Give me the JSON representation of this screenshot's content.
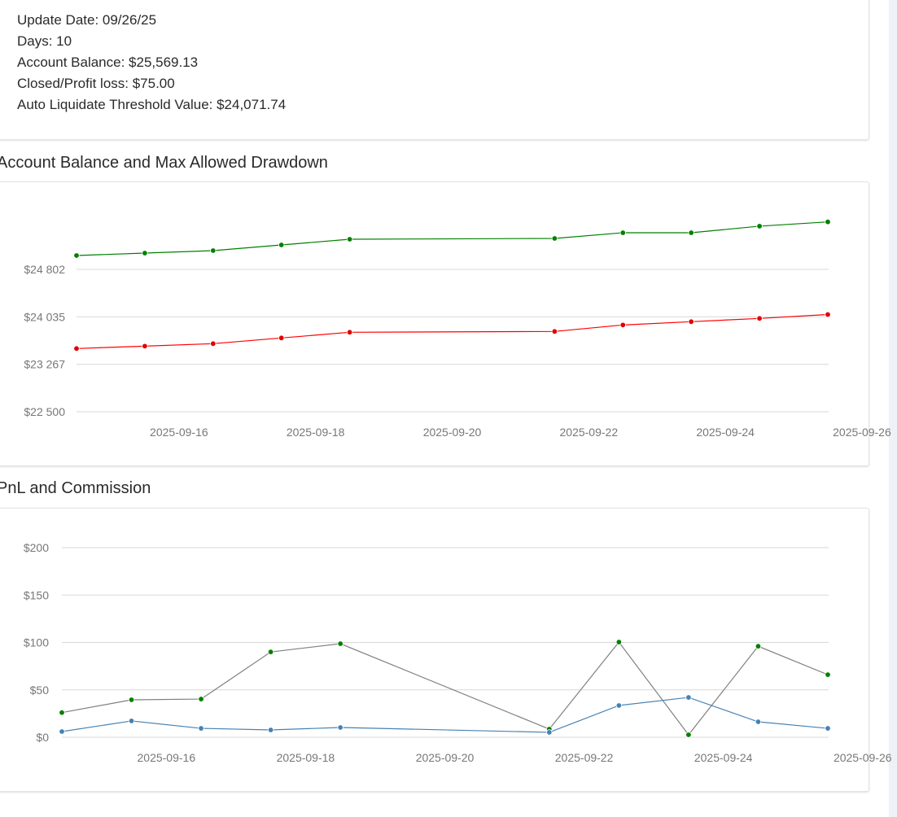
{
  "summary": {
    "update_date": "Update Date: 09/26/25",
    "days": "Days: 10",
    "account_balance": "Account Balance: $25,569.13",
    "closed_pl": "Closed/Profit loss: $75.00",
    "threshold": "Auto Liquidate Threshold Value: $24,071.74"
  },
  "chart_data": [
    {
      "type": "line",
      "title": "Account Balance and Max Allowed Drawdown",
      "x": [
        "2025-09-15",
        "2025-09-16",
        "2025-09-17",
        "2025-09-18",
        "2025-09-19",
        "2025-09-22",
        "2025-09-23",
        "2025-09-24",
        "2025-09-25",
        "2025-09-26"
      ],
      "series": [
        {
          "values": [
            25026,
            25065,
            25105,
            25197,
            25289,
            25302,
            25394,
            25394,
            25500,
            25569.13
          ],
          "color": "#008000",
          "marker": "#008000"
        },
        {
          "values": [
            23522,
            23561,
            23601,
            23693,
            23785,
            23798,
            23903,
            23956,
            24009,
            24071.74
          ],
          "color": "#ff0000",
          "marker": "#e00000"
        }
      ],
      "ylim": [
        22500,
        25569.13
      ],
      "yticks": [
        22500,
        23267,
        24035,
        24802
      ],
      "ytick_labels": [
        "$22 500",
        "$23 267",
        "$24 035",
        "$24 802"
      ],
      "xtick_labels": [
        "2025-09-16",
        "2025-09-18",
        "2025-09-20",
        "2025-09-22",
        "2025-09-24",
        "2025-09-26"
      ],
      "grid": true
    },
    {
      "type": "line",
      "title": "PnL and Commission",
      "x": [
        "2025-09-15",
        "2025-09-16",
        "2025-09-17",
        "2025-09-18",
        "2025-09-19",
        "2025-09-22",
        "2025-09-23",
        "2025-09-24",
        "2025-09-25",
        "2025-09-26"
      ],
      "series": [
        {
          "values": [
            26,
            39.5,
            40.3,
            90,
            98.7,
            8.6,
            100.4,
            2.6,
            96,
            66
          ],
          "color": "#808080",
          "marker": "#008000"
        },
        {
          "values": [
            6,
            17.2,
            9.4,
            7.7,
            10.3,
            5.2,
            33.5,
            42,
            16.3,
            9.4
          ],
          "color": "#4682b4",
          "marker": "#4682b4"
        }
      ],
      "ylim": [
        0,
        200
      ],
      "yticks": [
        0,
        50,
        100,
        150,
        200
      ],
      "ytick_labels": [
        "$0",
        "$50",
        "$100",
        "$150",
        "$200"
      ],
      "xtick_labels": [
        "2025-09-16",
        "2025-09-18",
        "2025-09-20",
        "2025-09-22",
        "2025-09-24",
        "2025-09-26"
      ],
      "grid": true
    }
  ]
}
